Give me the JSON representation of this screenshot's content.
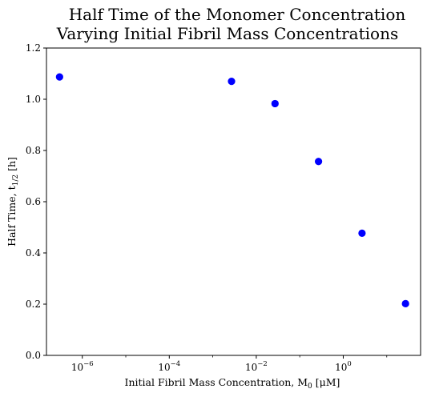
{
  "chart_data": {
    "type": "scatter",
    "title_lines": [
      "Half Time of the Monomer Concentration",
      "Varying Initial Fibril Mass Concentrations"
    ],
    "xlabel": "Initial Fibril Mass Concentration, M",
    "xlabel_sub": "0",
    "xlabel_unit": " [μM]",
    "ylabel": "Half Time, t",
    "ylabel_sub": "1/2",
    "ylabel_unit": " [h]",
    "x_scale": "log",
    "xlim": [
      1.5e-07,
      60
    ],
    "ylim": [
      0,
      1.2
    ],
    "x_ticks": [
      {
        "value": 1e-06,
        "base": "10",
        "exp": "−6"
      },
      {
        "value": 0.0001,
        "base": "10",
        "exp": "−4"
      },
      {
        "value": 0.01,
        "base": "10",
        "exp": "−2"
      },
      {
        "value": 1,
        "base": "10",
        "exp": "0"
      }
    ],
    "y_ticks": [
      {
        "value": 0.0,
        "label": "0.0"
      },
      {
        "value": 0.2,
        "label": "0.2"
      },
      {
        "value": 0.4,
        "label": "0.4"
      },
      {
        "value": 0.6,
        "label": "0.6"
      },
      {
        "value": 0.8,
        "label": "0.8"
      },
      {
        "value": 1.0,
        "label": "1.0"
      },
      {
        "value": 1.2,
        "label": "1.2"
      }
    ],
    "points": [
      {
        "x": 3e-07,
        "y": 1.087
      },
      {
        "x": 0.0027,
        "y": 1.07
      },
      {
        "x": 0.027,
        "y": 0.983
      },
      {
        "x": 0.27,
        "y": 0.757
      },
      {
        "x": 2.7,
        "y": 0.477
      },
      {
        "x": 27,
        "y": 0.202
      }
    ],
    "marker_color": "#0000ff",
    "grid": false,
    "legend": "none"
  }
}
